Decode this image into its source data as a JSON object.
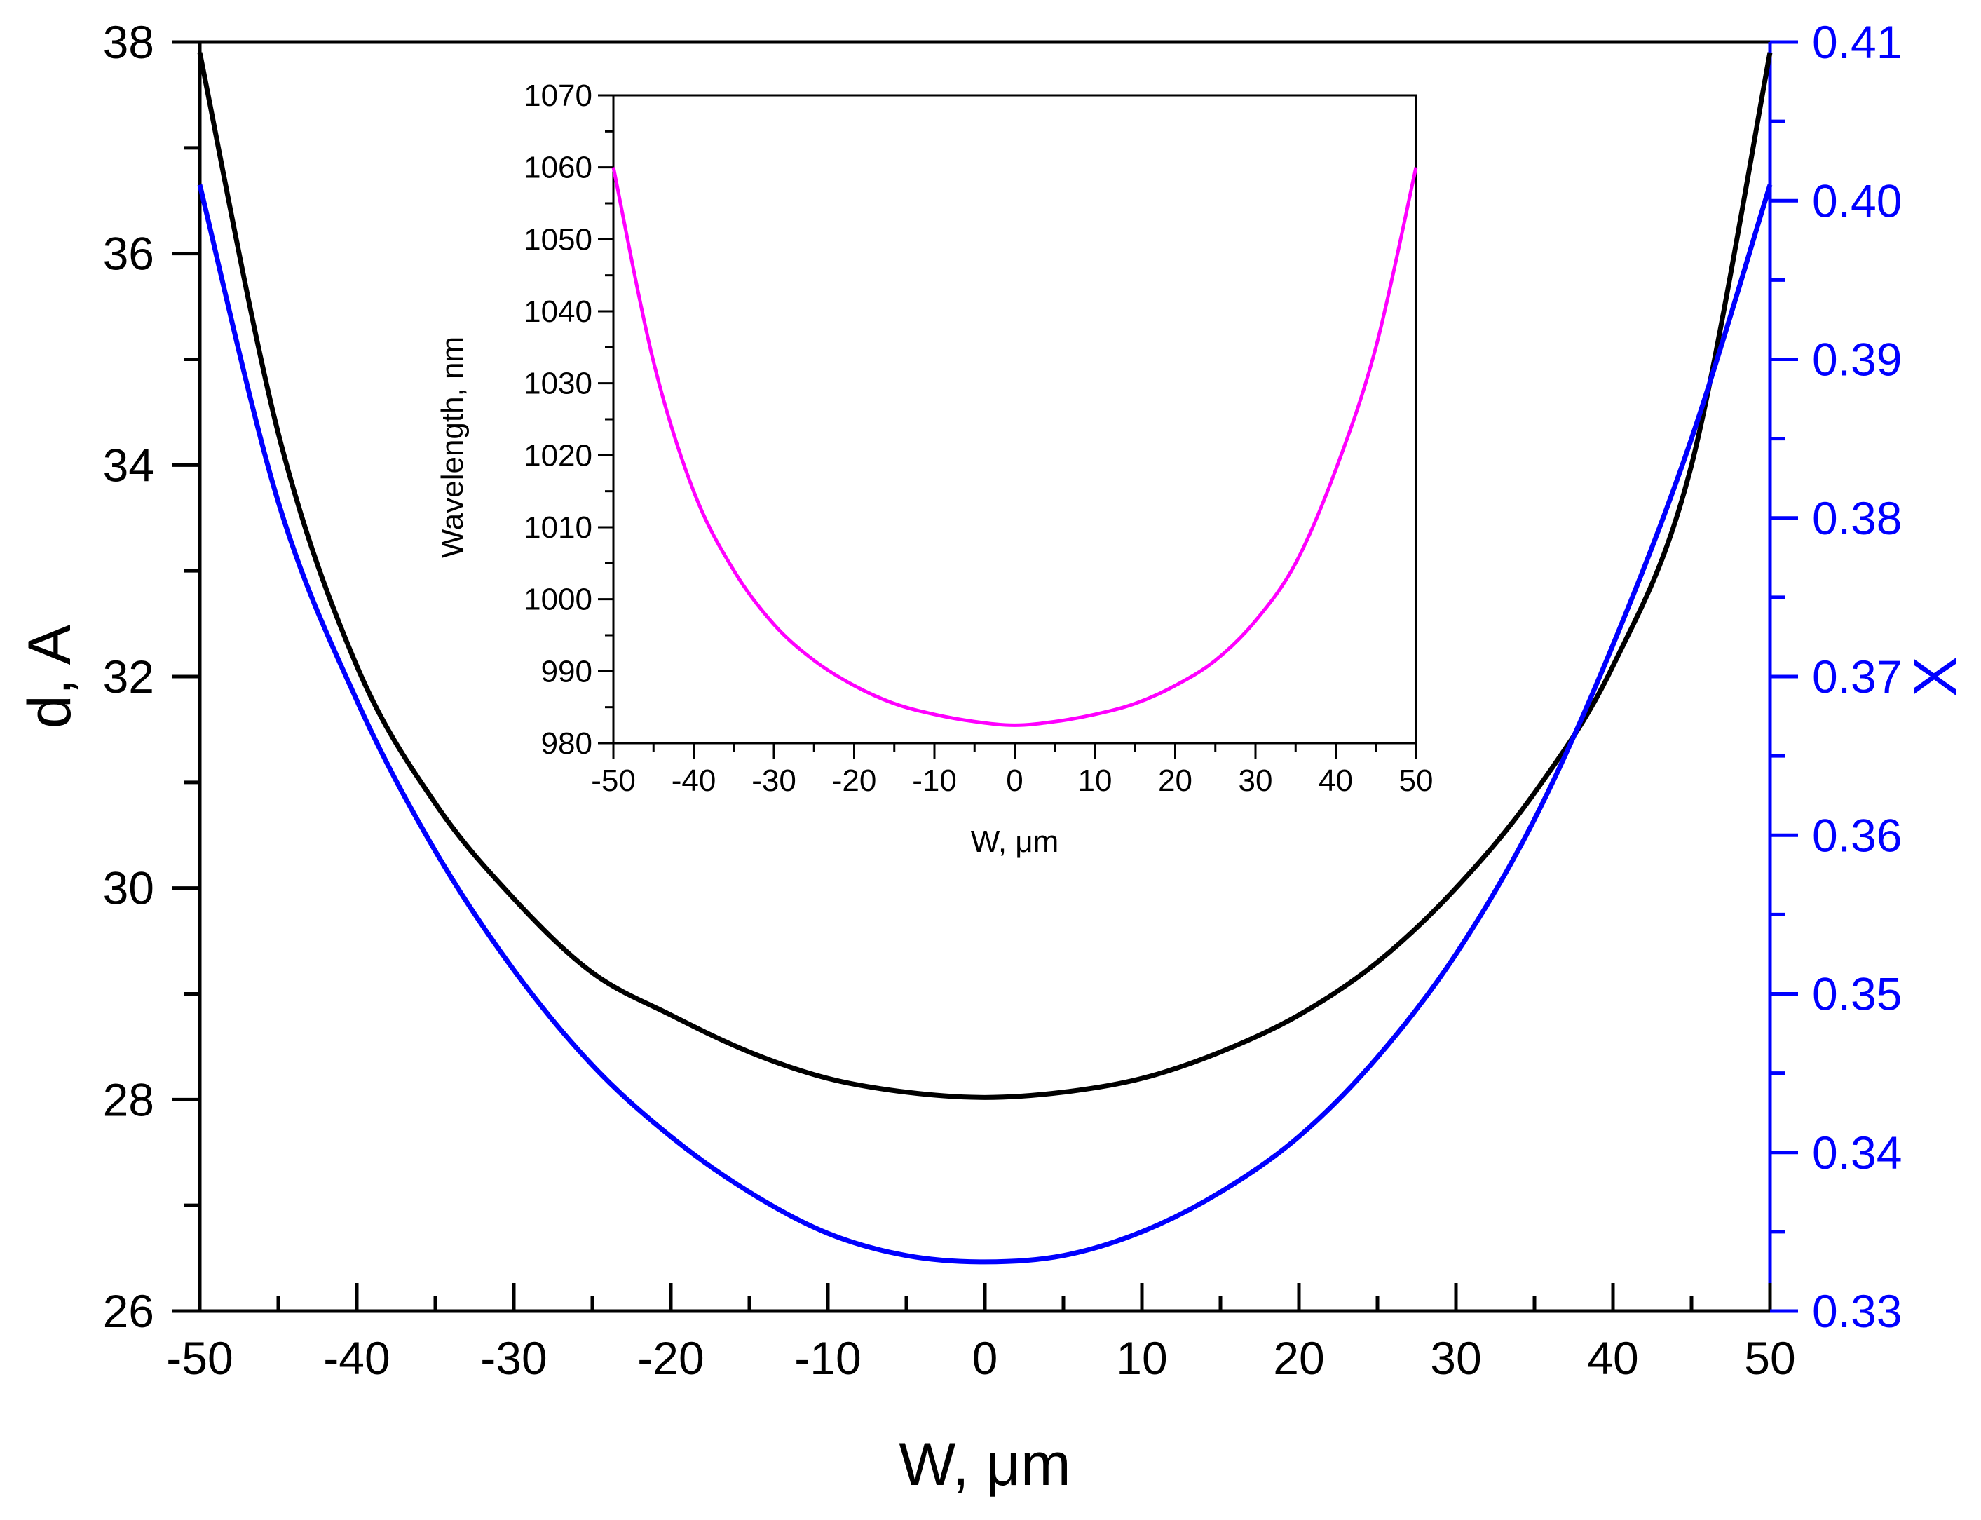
{
  "chart_data": [
    {
      "id": "main",
      "type": "line",
      "xlabel": "W, μm",
      "xlim": [
        -50,
        50
      ],
      "xticks": [
        -50,
        -40,
        -30,
        -20,
        -10,
        0,
        10,
        20,
        30,
        40,
        50
      ],
      "ylabel_left": "d, A",
      "ylim_left": [
        26,
        38
      ],
      "yticks_left": [
        26,
        28,
        30,
        32,
        34,
        36,
        38
      ],
      "ylabel_right": "X",
      "ylim_right": [
        0.33,
        0.41
      ],
      "yticks_right": [
        "0.33",
        "0.34",
        "0.35",
        "0.36",
        "0.37",
        "0.38",
        "0.39",
        "0.40",
        "0.41"
      ],
      "colors": {
        "left_axis": "#000000",
        "right_axis": "#0000ff"
      },
      "series": [
        {
          "name": "d",
          "axis": "left",
          "color": "#000000",
          "x": [
            -50,
            -45,
            -40,
            -35,
            -30,
            -25,
            -20,
            -15,
            -10,
            -5,
            0,
            5,
            10,
            15,
            20,
            25,
            30,
            35,
            40,
            45,
            50
          ],
          "y": [
            37.9,
            34.3,
            32.1,
            30.8,
            29.9,
            29.2,
            28.8,
            28.45,
            28.2,
            28.07,
            28.02,
            28.07,
            28.2,
            28.45,
            28.8,
            29.3,
            30.0,
            30.9,
            32.1,
            34.0,
            37.9
          ]
        },
        {
          "name": "X",
          "axis": "right",
          "color": "#0000ff",
          "x": [
            -50,
            -45,
            -40,
            -35,
            -30,
            -25,
            -20,
            -15,
            -10,
            -5,
            0,
            5,
            10,
            15,
            20,
            25,
            30,
            35,
            40,
            45,
            50
          ],
          "y": [
            0.401,
            0.381,
            0.3685,
            0.359,
            0.3515,
            0.3455,
            0.341,
            0.3375,
            0.3349,
            0.3335,
            0.3331,
            0.3335,
            0.335,
            0.3375,
            0.341,
            0.346,
            0.3525,
            0.361,
            0.372,
            0.385,
            0.401
          ]
        }
      ]
    },
    {
      "id": "inset",
      "type": "line",
      "xlabel": "W, μm",
      "xlim": [
        -50,
        50
      ],
      "xticks": [
        -50,
        -40,
        -30,
        -20,
        -10,
        0,
        10,
        20,
        30,
        40,
        50
      ],
      "ylabel": "Wavelength, nm",
      "ylim": [
        980,
        1070
      ],
      "yticks": [
        980,
        990,
        1000,
        1010,
        1020,
        1030,
        1040,
        1050,
        1060,
        1070
      ],
      "series": [
        {
          "name": "Wavelength",
          "color": "#ff00ff",
          "x": [
            -50,
            -45,
            -40,
            -35,
            -30,
            -25,
            -20,
            -15,
            -10,
            -5,
            0,
            5,
            10,
            15,
            20,
            25,
            30,
            35,
            40,
            45,
            50
          ],
          "y": [
            1060,
            1033,
            1015,
            1004,
            996.5,
            991.5,
            988,
            985.5,
            984,
            983,
            982.5,
            983,
            984,
            985.5,
            988,
            991.5,
            997,
            1005,
            1018,
            1035,
            1060
          ]
        }
      ]
    }
  ]
}
